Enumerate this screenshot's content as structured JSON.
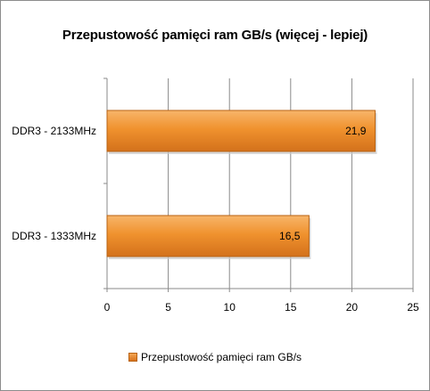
{
  "chart_data": {
    "type": "bar",
    "orientation": "horizontal",
    "title": "Przepustowość pamięci ram GB/s (więcej - lepiej)",
    "categories": [
      "DDR3 - 2133MHz",
      "DDR3 - 1333MHz"
    ],
    "series": [
      {
        "name": "Przepustowość pamięci ram GB/s",
        "values": [
          21.9,
          16.5
        ],
        "value_labels": [
          "21,9",
          "16,5"
        ],
        "color": "#f0922e"
      }
    ],
    "xlim": [
      0,
      25
    ],
    "x_ticks": [
      0,
      5,
      10,
      15,
      20,
      25
    ],
    "grid": true,
    "legend_position": "bottom"
  }
}
